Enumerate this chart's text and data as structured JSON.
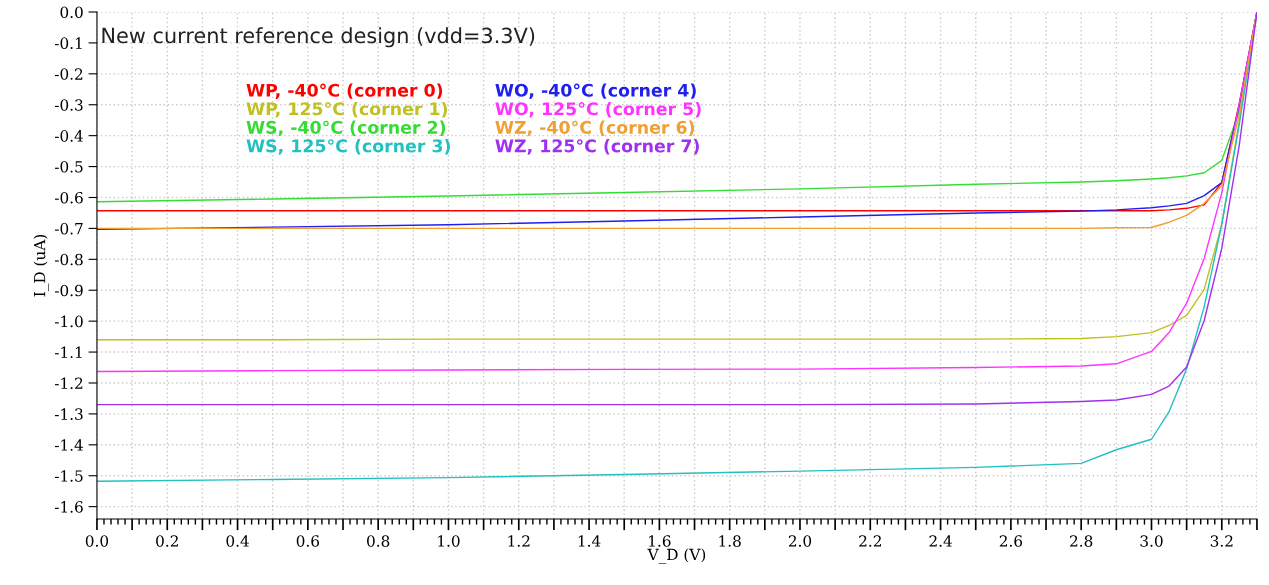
{
  "chart_data": {
    "type": "line",
    "title": "New current reference design (vdd=3.3V)",
    "xlabel": "V_D (V)",
    "ylabel": "I_D (uA)",
    "x": [
      0,
      0.5,
      1.0,
      1.5,
      2.0,
      2.5,
      2.8,
      2.9,
      3.0,
      3.05,
      3.1,
      3.15,
      3.2,
      3.25,
      3.3
    ],
    "series": [
      {
        "name": "WP, -40°C (corner 0)",
        "color": "#ff0000",
        "values": [
          -0.643,
          -0.643,
          -0.643,
          -0.643,
          -0.643,
          -0.643,
          -0.643,
          -0.643,
          -0.643,
          -0.64,
          -0.635,
          -0.624,
          -0.552,
          -0.295,
          0
        ]
      },
      {
        "name": "WP, 125°C (corner 1)",
        "color": "#c0c020",
        "values": [
          -1.06,
          -1.06,
          -1.058,
          -1.058,
          -1.058,
          -1.058,
          -1.056,
          -1.05,
          -1.037,
          -1.014,
          -0.981,
          -0.897,
          -0.686,
          -0.351,
          0
        ]
      },
      {
        "name": "WS, -40°C (corner 2)",
        "color": "#33dd33",
        "values": [
          -0.614,
          -0.605,
          -0.595,
          -0.584,
          -0.572,
          -0.557,
          -0.55,
          -0.546,
          -0.54,
          -0.536,
          -0.53,
          -0.52,
          -0.48,
          -0.32,
          0
        ]
      },
      {
        "name": "WS, 125°C (corner 3)",
        "color": "#22c0c0",
        "values": [
          -1.518,
          -1.512,
          -1.506,
          -1.496,
          -1.485,
          -1.473,
          -1.46,
          -1.416,
          -1.382,
          -1.293,
          -1.154,
          -0.953,
          -0.686,
          -0.362,
          0
        ]
      },
      {
        "name": "WO, -40°C (corner 4)",
        "color": "#2020ee",
        "values": [
          -0.703,
          -0.696,
          -0.688,
          -0.676,
          -0.663,
          -0.65,
          -0.644,
          -0.64,
          -0.633,
          -0.627,
          -0.619,
          -0.594,
          -0.552,
          -0.3,
          0
        ]
      },
      {
        "name": "WO, 125°C (corner 5)",
        "color": "#ff33ff",
        "values": [
          -1.163,
          -1.16,
          -1.158,
          -1.156,
          -1.155,
          -1.15,
          -1.145,
          -1.138,
          -1.098,
          -1.037,
          -0.942,
          -0.797,
          -0.585,
          -0.295,
          0
        ]
      },
      {
        "name": "WZ, -40°C (corner 6)",
        "color": "#f0a030",
        "values": [
          -0.7,
          -0.7,
          -0.7,
          -0.7,
          -0.7,
          -0.7,
          -0.7,
          -0.698,
          -0.697,
          -0.68,
          -0.658,
          -0.619,
          -0.563,
          -0.33,
          0
        ]
      },
      {
        "name": "WZ, 125°C (corner 7)",
        "color": "#a030f0",
        "values": [
          -1.27,
          -1.27,
          -1.27,
          -1.27,
          -1.27,
          -1.268,
          -1.26,
          -1.255,
          -1.237,
          -1.21,
          -1.148,
          -0.998,
          -0.764,
          -0.429,
          0
        ]
      }
    ],
    "xlim": [
      0,
      3.3
    ],
    "xticks": [
      {
        "value": 0,
        "label": "0.0"
      },
      {
        "value": 0.1,
        "label": null
      },
      {
        "value": 0.2,
        "label": "0.2"
      },
      {
        "value": 0.3,
        "label": null
      },
      {
        "value": 0.4,
        "label": "0.4"
      },
      {
        "value": 0.5,
        "label": null
      },
      {
        "value": 0.6,
        "label": "0.6"
      },
      {
        "value": 0.7,
        "label": null
      },
      {
        "value": 0.8,
        "label": "0.8"
      },
      {
        "value": 0.9,
        "label": null
      },
      {
        "value": 1.0,
        "label": "1.0"
      },
      {
        "value": 1.1,
        "label": null
      },
      {
        "value": 1.2,
        "label": "1.2"
      },
      {
        "value": 1.3,
        "label": null
      },
      {
        "value": 1.4,
        "label": "1.4"
      },
      {
        "value": 1.5,
        "label": null
      },
      {
        "value": 1.6,
        "label": "1.6"
      },
      {
        "value": 1.7,
        "label": null
      },
      {
        "value": 1.8,
        "label": "1.8"
      },
      {
        "value": 1.9,
        "label": null
      },
      {
        "value": 2.0,
        "label": "2.0"
      },
      {
        "value": 2.1,
        "label": null
      },
      {
        "value": 2.2,
        "label": "2.2"
      },
      {
        "value": 2.3,
        "label": null
      },
      {
        "value": 2.4,
        "label": "2.4"
      },
      {
        "value": 2.5,
        "label": null
      },
      {
        "value": 2.6,
        "label": "2.6"
      },
      {
        "value": 2.7,
        "label": null
      },
      {
        "value": 2.8,
        "label": "2.8"
      },
      {
        "value": 2.9,
        "label": null
      },
      {
        "value": 3.0,
        "label": "3.0"
      },
      {
        "value": 3.1,
        "label": null
      },
      {
        "value": 3.2,
        "label": "3.2"
      },
      {
        "value": 3.3,
        "label": null
      }
    ],
    "ylim": [
      -1.64,
      0
    ],
    "yticks": [
      {
        "value": 0,
        "label": "0.0"
      },
      {
        "value": -0.1,
        "label": "-0.1"
      },
      {
        "value": -0.2,
        "label": "-0.2"
      },
      {
        "value": -0.3,
        "label": "-0.3"
      },
      {
        "value": -0.4,
        "label": "-0.4"
      },
      {
        "value": -0.5,
        "label": "-0.5"
      },
      {
        "value": -0.6,
        "label": "-0.6"
      },
      {
        "value": -0.7,
        "label": "-0.7"
      },
      {
        "value": -0.8,
        "label": "-0.8"
      },
      {
        "value": -0.9,
        "label": "-0.9"
      },
      {
        "value": -1.0,
        "label": "-1.0"
      },
      {
        "value": -1.1,
        "label": "-1.1"
      },
      {
        "value": -1.2,
        "label": "-1.2"
      },
      {
        "value": -1.3,
        "label": "-1.3"
      },
      {
        "value": -1.4,
        "label": "-1.4"
      },
      {
        "value": -1.5,
        "label": "-1.5"
      },
      {
        "value": -1.6,
        "label": "-1.6"
      }
    ],
    "grid": true,
    "legend": "top left",
    "marker": "none",
    "line_style": "solid"
  }
}
